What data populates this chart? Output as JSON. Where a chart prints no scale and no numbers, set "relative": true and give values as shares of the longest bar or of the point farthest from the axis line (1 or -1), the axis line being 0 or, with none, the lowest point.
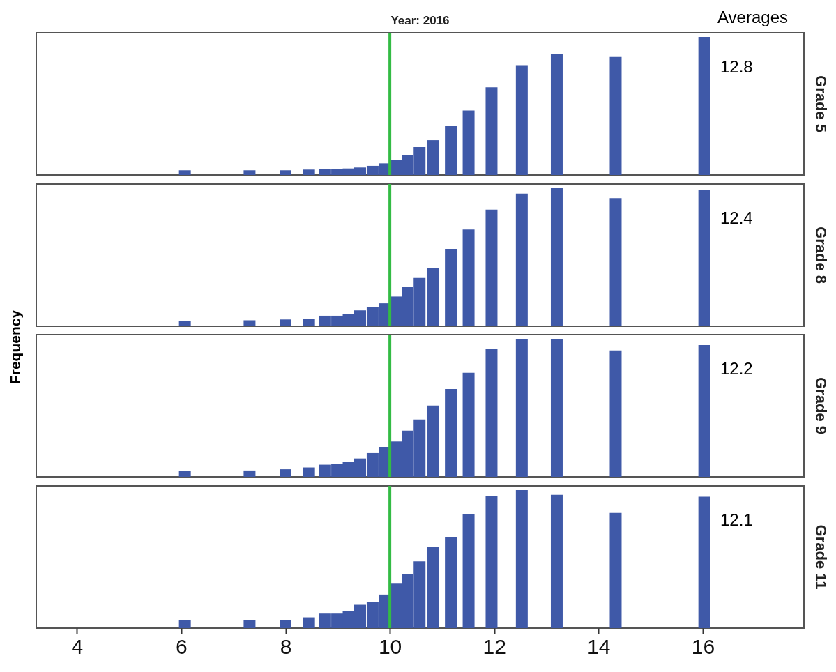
{
  "chart_data": [
    {
      "type": "bar",
      "title": "Year: 2016",
      "y2label": "Grade 5",
      "relative": true,
      "tick_labels": false,
      "xlim": [
        3.22,
        17.94
      ],
      "ref_lines": [
        {
          "axis": "x",
          "value": 10,
          "color": "#33bb44"
        }
      ],
      "annotations": [
        "Averages",
        "12.8"
      ],
      "x": [
        6.07,
        7.31,
        8.0,
        8.45,
        8.76,
        8.99,
        9.21,
        9.43,
        9.67,
        9.9,
        10.12,
        10.34,
        10.57,
        10.83,
        11.17,
        11.51,
        11.95,
        12.53,
        13.2,
        14.33,
        16.03
      ],
      "series": [
        {
          "color": "#3f59a8",
          "values": [
            0.034,
            0.034,
            0.034,
            0.039,
            0.044,
            0.044,
            0.047,
            0.054,
            0.066,
            0.084,
            0.109,
            0.143,
            0.202,
            0.252,
            0.353,
            0.467,
            0.635,
            0.795,
            0.879,
            0.854,
            1
          ]
        }
      ]
    },
    {
      "type": "bar",
      "y2label": "Grade 8",
      "relative": true,
      "tick_labels": false,
      "xlim": [
        3.22,
        17.94
      ],
      "ref_lines": [
        {
          "axis": "x",
          "value": 10,
          "color": "#33bb44"
        }
      ],
      "annotations": [
        "12.4"
      ],
      "x": [
        6.07,
        7.31,
        8.0,
        8.45,
        8.76,
        8.99,
        9.21,
        9.43,
        9.67,
        9.9,
        10.12,
        10.34,
        10.57,
        10.83,
        11.17,
        11.51,
        11.95,
        12.53,
        13.2,
        14.33,
        16.03
      ],
      "series": [
        {
          "color": "#3f59a8",
          "values": [
            0.039,
            0.043,
            0.049,
            0.054,
            0.076,
            0.076,
            0.09,
            0.115,
            0.137,
            0.166,
            0.215,
            0.283,
            0.35,
            0.422,
            0.56,
            0.701,
            0.844,
            0.96,
            1,
            0.928,
            0.988
          ]
        }
      ]
    },
    {
      "type": "bar",
      "ylabel": "Frequency",
      "y2label": "Grade 9",
      "relative": true,
      "tick_labels": false,
      "xlim": [
        3.22,
        17.94
      ],
      "ref_lines": [
        {
          "axis": "x",
          "value": 10,
          "color": "#33bb44"
        }
      ],
      "annotations": [
        "12.2"
      ],
      "x": [
        6.07,
        7.31,
        8.0,
        8.45,
        8.76,
        8.99,
        9.21,
        9.43,
        9.67,
        9.9,
        10.12,
        10.34,
        10.57,
        10.83,
        11.17,
        11.51,
        11.95,
        12.53,
        13.2,
        14.33,
        16.03
      ],
      "series": [
        {
          "color": "#3f59a8",
          "values": [
            0.045,
            0.046,
            0.055,
            0.068,
            0.088,
            0.095,
            0.106,
            0.133,
            0.172,
            0.217,
            0.256,
            0.334,
            0.415,
            0.516,
            0.636,
            0.753,
            0.928,
            1,
            0.996,
            0.915,
            0.954
          ]
        }
      ]
    },
    {
      "type": "bar",
      "y2label": "Grade 11",
      "relative": true,
      "tick_labels": "x",
      "xlim": [
        3.22,
        17.94
      ],
      "xticks": [
        4,
        6,
        8,
        10,
        12,
        14,
        16
      ],
      "ref_lines": [
        {
          "axis": "x",
          "value": 10,
          "color": "#33bb44"
        }
      ],
      "annotations": [
        "12.1"
      ],
      "x": [
        6.07,
        7.31,
        8.0,
        8.45,
        8.76,
        8.99,
        9.21,
        9.43,
        9.67,
        9.9,
        10.12,
        10.34,
        10.57,
        10.83,
        11.17,
        11.51,
        11.95,
        12.53,
        13.2,
        14.33,
        16.03
      ],
      "series": [
        {
          "color": "#3f59a8",
          "values": [
            0.057,
            0.057,
            0.06,
            0.078,
            0.105,
            0.105,
            0.126,
            0.169,
            0.191,
            0.243,
            0.322,
            0.391,
            0.483,
            0.586,
            0.66,
            0.826,
            0.957,
            1,
            0.966,
            0.834,
            0.952
          ]
        }
      ]
    }
  ]
}
